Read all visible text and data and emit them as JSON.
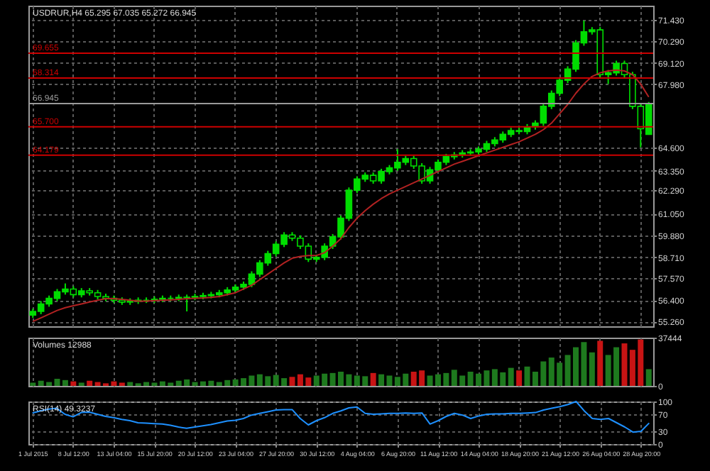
{
  "chart_data": [
    {
      "type": "candlestick",
      "title": "USDRUR,H4 65.295 67.035 65.272 66.945",
      "color": "#00dd00",
      "categories": [
        null,
        null,
        null,
        null,
        null,
        null,
        null,
        null,
        null,
        null,
        null,
        null,
        null,
        null,
        null,
        null,
        null,
        null,
        null,
        null,
        null,
        null,
        null,
        null,
        null,
        null,
        null,
        null,
        null,
        null,
        null,
        null,
        null,
        null,
        null,
        null,
        null,
        null,
        null,
        null,
        null,
        null,
        null,
        null,
        null,
        null,
        null,
        null,
        null,
        null,
        null,
        null,
        null,
        null,
        null,
        null,
        null,
        null,
        null,
        null,
        null,
        null,
        null,
        null,
        null,
        null,
        null,
        null,
        null,
        null,
        null,
        null,
        null,
        null,
        null,
        null,
        null
      ],
      "ohlc": [
        [
          55.6,
          55.95,
          55.45,
          55.8
        ],
        [
          55.8,
          56.35,
          55.65,
          56.2
        ],
        [
          56.2,
          56.65,
          56.05,
          56.5
        ],
        [
          56.5,
          57.0,
          56.35,
          56.85
        ],
        [
          56.85,
          57.3,
          56.7,
          57.0
        ],
        [
          57.0,
          57.15,
          56.55,
          56.7
        ],
        [
          56.7,
          57.05,
          56.55,
          56.9
        ],
        [
          56.9,
          57.05,
          56.65,
          56.8
        ],
        [
          56.8,
          56.95,
          56.45,
          56.6
        ],
        [
          56.6,
          56.75,
          56.35,
          56.5
        ],
        [
          56.5,
          56.65,
          56.25,
          56.4
        ],
        [
          56.4,
          56.55,
          56.15,
          56.3
        ],
        [
          56.3,
          56.5,
          56.15,
          56.35
        ],
        [
          56.35,
          56.55,
          56.2,
          56.4
        ],
        [
          56.4,
          56.55,
          56.25,
          56.4
        ],
        [
          56.4,
          56.6,
          56.25,
          56.45
        ],
        [
          56.45,
          56.65,
          56.3,
          56.5
        ],
        [
          56.5,
          56.65,
          56.35,
          56.5
        ],
        [
          56.5,
          56.7,
          56.35,
          56.55
        ],
        [
          56.55,
          56.7,
          55.8,
          56.56
        ],
        [
          56.56,
          56.75,
          56.4,
          56.6
        ],
        [
          56.6,
          56.8,
          56.45,
          56.65
        ],
        [
          56.65,
          56.85,
          56.5,
          56.7
        ],
        [
          56.7,
          56.95,
          56.55,
          56.8
        ],
        [
          56.8,
          57.1,
          56.65,
          56.95
        ],
        [
          56.95,
          57.25,
          56.8,
          57.1
        ],
        [
          57.1,
          57.4,
          56.95,
          57.25
        ],
        [
          57.25,
          57.95,
          57.1,
          57.8
        ],
        [
          57.8,
          58.55,
          57.65,
          58.4
        ],
        [
          58.4,
          59.05,
          58.25,
          58.9
        ],
        [
          58.9,
          59.55,
          58.75,
          59.4
        ],
        [
          59.4,
          60.05,
          59.25,
          59.9
        ],
        [
          59.9,
          60.05,
          59.58,
          59.73
        ],
        [
          59.73,
          59.88,
          59.15,
          59.3
        ],
        [
          59.3,
          59.45,
          58.45,
          58.6
        ],
        [
          58.6,
          58.85,
          58.45,
          58.7
        ],
        [
          58.7,
          59.45,
          58.55,
          59.3
        ],
        [
          59.3,
          59.95,
          59.15,
          59.8
        ],
        [
          59.8,
          60.95,
          59.65,
          60.8
        ],
        [
          60.8,
          62.45,
          60.65,
          62.3
        ],
        [
          62.3,
          63.05,
          62.15,
          62.9
        ],
        [
          62.9,
          63.25,
          62.75,
          63.1
        ],
        [
          63.1,
          63.25,
          62.65,
          62.8
        ],
        [
          62.8,
          63.45,
          62.65,
          63.3
        ],
        [
          63.3,
          63.65,
          63.15,
          63.5
        ],
        [
          63.5,
          64.5,
          63.35,
          63.8
        ],
        [
          63.8,
          64.15,
          63.65,
          64.0
        ],
        [
          64.0,
          64.15,
          63.45,
          63.6
        ],
        [
          63.6,
          63.75,
          62.65,
          62.8
        ],
        [
          62.8,
          63.55,
          62.65,
          63.4
        ],
        [
          63.4,
          63.95,
          63.25,
          63.8
        ],
        [
          63.8,
          64.25,
          63.65,
          64.1
        ],
        [
          64.1,
          64.35,
          63.95,
          64.2
        ],
        [
          64.2,
          64.45,
          64.05,
          64.3
        ],
        [
          64.3,
          64.5,
          64.15,
          64.35
        ],
        [
          64.35,
          64.65,
          64.2,
          64.5
        ],
        [
          64.5,
          64.95,
          64.35,
          64.8
        ],
        [
          64.8,
          65.15,
          64.65,
          65.0
        ],
        [
          65.0,
          65.45,
          64.85,
          65.3
        ],
        [
          65.3,
          65.65,
          65.15,
          65.5
        ],
        [
          65.5,
          65.65,
          65.3,
          65.45
        ],
        [
          65.45,
          65.85,
          65.3,
          65.7
        ],
        [
          65.7,
          66.05,
          65.55,
          65.9
        ],
        [
          65.9,
          66.95,
          65.75,
          66.8
        ],
        [
          66.8,
          67.65,
          66.65,
          67.5
        ],
        [
          67.5,
          68.35,
          67.35,
          68.2
        ],
        [
          68.2,
          68.95,
          68.05,
          68.8
        ],
        [
          68.8,
          70.35,
          68.65,
          70.2
        ],
        [
          70.2,
          71.4,
          70.05,
          70.8
        ],
        [
          70.8,
          71.05,
          70.65,
          70.9
        ],
        [
          70.9,
          71.05,
          68.35,
          68.5
        ],
        [
          68.5,
          68.75,
          68.0,
          68.6
        ],
        [
          68.6,
          69.25,
          68.45,
          69.1
        ],
        [
          69.1,
          69.25,
          68.35,
          68.5
        ],
        [
          68.5,
          68.65,
          66.65,
          66.8
        ],
        [
          66.8,
          66.95,
          64.6,
          65.6
        ],
        [
          65.295,
          67.035,
          65.272,
          66.945
        ]
      ],
      "series": [
        {
          "type": "line",
          "color": "#b22222",
          "values": [
            55.26,
            55.45,
            55.65,
            55.85,
            56.0,
            56.1,
            56.2,
            56.3,
            56.4,
            56.48,
            56.48,
            56.45,
            56.4,
            56.35,
            56.35,
            56.38,
            56.4,
            56.42,
            56.45,
            56.48,
            56.5,
            56.52,
            56.55,
            56.6,
            56.7,
            56.8,
            57.0,
            57.2,
            57.5,
            57.8,
            58.1,
            58.4,
            58.65,
            58.75,
            58.8,
            58.8,
            58.95,
            59.3,
            59.7,
            60.3,
            60.8,
            61.2,
            61.55,
            61.85,
            62.1,
            62.3,
            62.5,
            62.7,
            62.9,
            63.1,
            63.3,
            63.5,
            63.7,
            63.85,
            64.0,
            64.15,
            64.3,
            64.45,
            64.6,
            64.75,
            64.9,
            65.1,
            65.3,
            65.55,
            65.9,
            66.4,
            66.9,
            67.5,
            68.0,
            68.4,
            68.6,
            68.7,
            68.75,
            68.7,
            68.5,
            68.0,
            67.3
          ]
        }
      ],
      "ylim": [
        55.0,
        72.2
      ],
      "yticks": [
        {
          "value": 55.26,
          "label": "55.260"
        },
        {
          "value": 56.4,
          "label": "56.400"
        },
        {
          "value": 57.57,
          "label": "57.570"
        },
        {
          "value": 58.71,
          "label": "58.710"
        },
        {
          "value": 59.88,
          "label": "59.880"
        },
        {
          "value": 61.05,
          "label": "61.050"
        },
        {
          "value": 62.29,
          "label": "62.290"
        },
        {
          "value": 63.35,
          "label": "63.350"
        },
        {
          "value": 64.6,
          "label": "64.600"
        },
        {
          "value": 67.98,
          "label": "67.980"
        },
        {
          "value": 69.12,
          "label": "69.120"
        },
        {
          "value": 70.29,
          "label": "70.290"
        },
        {
          "value": 71.43,
          "label": "71.430"
        }
      ],
      "ref_lines": [
        {
          "axis": "y",
          "value": 69.655,
          "label": "69.655",
          "color": "#cc0000"
        },
        {
          "axis": "y",
          "value": 68.314,
          "label": "68.314",
          "color": "#cc0000"
        },
        {
          "axis": "y",
          "value": 66.945,
          "label": "66.945",
          "color": "#9a9a9a"
        },
        {
          "axis": "y",
          "value": 65.7,
          "label": "65.700",
          "color": "#cc0000"
        },
        {
          "axis": "y",
          "value": 64.179,
          "label": "64.179",
          "color": "#cc0000"
        }
      ],
      "grid": true,
      "tick_labels": "y"
    },
    {
      "type": "bar",
      "title": "Volumes 12988",
      "categories": [
        null,
        null,
        null,
        null,
        null,
        null,
        null,
        null,
        null,
        null,
        null,
        null,
        null,
        null,
        null,
        null,
        null,
        null,
        null,
        null,
        null,
        null,
        null,
        null,
        null,
        null,
        null,
        null,
        null,
        null,
        null,
        null,
        null,
        null,
        null,
        null,
        null,
        null,
        null,
        null,
        null,
        null,
        null,
        null,
        null,
        null,
        null,
        null,
        null,
        null,
        null,
        null,
        null,
        null,
        null,
        null,
        null,
        null,
        null,
        null,
        null,
        null,
        null,
        null,
        null,
        null,
        null,
        null,
        null,
        null,
        null,
        null,
        null,
        null,
        null,
        null,
        null
      ],
      "values": [
        2500,
        4000,
        3000,
        5500,
        4500,
        3500,
        2500,
        4000,
        3000,
        2000,
        3500,
        2500,
        3000,
        2000,
        3000,
        2500,
        3500,
        2500,
        4000,
        5000,
        3000,
        3500,
        4000,
        3000,
        4500,
        5000,
        6000,
        8000,
        9000,
        7500,
        8500,
        6000,
        7000,
        9000,
        6500,
        8000,
        9500,
        10000,
        11000,
        9000,
        8000,
        7500,
        10000,
        9000,
        8000,
        7000,
        9500,
        11000,
        12000,
        8000,
        9000,
        10000,
        12500,
        8000,
        11000,
        9500,
        12000,
        13000,
        10500,
        14000,
        12000,
        15000,
        11000,
        19000,
        22000,
        18000,
        24000,
        30000,
        34000,
        26000,
        35000,
        24000,
        30000,
        33000,
        28000,
        36000,
        12988
      ],
      "colors": [
        "#1e7a1e",
        "#1e7a1e",
        "#1e7a1e",
        "#1e7a1e",
        "#1e7a1e",
        "#c81414",
        "#1e7a1e",
        "#c81414",
        "#c81414",
        "#c81414",
        "#c81414",
        "#c81414",
        "#1e7a1e",
        "#1e7a1e",
        "#1e7a1e",
        "#1e7a1e",
        "#1e7a1e",
        "#1e7a1e",
        "#1e7a1e",
        "#1e7a1e",
        "#1e7a1e",
        "#1e7a1e",
        "#1e7a1e",
        "#1e7a1e",
        "#1e7a1e",
        "#1e7a1e",
        "#1e7a1e",
        "#1e7a1e",
        "#1e7a1e",
        "#1e7a1e",
        "#1e7a1e",
        "#1e7a1e",
        "#c81414",
        "#c81414",
        "#c81414",
        "#1e7a1e",
        "#1e7a1e",
        "#1e7a1e",
        "#1e7a1e",
        "#1e7a1e",
        "#1e7a1e",
        "#1e7a1e",
        "#c81414",
        "#1e7a1e",
        "#1e7a1e",
        "#1e7a1e",
        "#1e7a1e",
        "#c81414",
        "#c81414",
        "#1e7a1e",
        "#1e7a1e",
        "#1e7a1e",
        "#1e7a1e",
        "#1e7a1e",
        "#1e7a1e",
        "#1e7a1e",
        "#1e7a1e",
        "#1e7a1e",
        "#1e7a1e",
        "#1e7a1e",
        "#c81414",
        "#1e7a1e",
        "#1e7a1e",
        "#1e7a1e",
        "#1e7a1e",
        "#1e7a1e",
        "#1e7a1e",
        "#1e7a1e",
        "#1e7a1e",
        "#1e7a1e",
        "#c81414",
        "#1e7a1e",
        "#1e7a1e",
        "#c81414",
        "#c81414",
        "#c81414",
        "#1e7a1e"
      ],
      "ylim": [
        0,
        37444
      ],
      "yticks": [
        0,
        37444
      ],
      "grid": "x",
      "tick_labels": "y"
    },
    {
      "type": "line",
      "title": "RSI(14) 49.3237",
      "color": "#1e90ff",
      "categories": [
        "1 Jul 2015",
        null,
        null,
        null,
        null,
        "8 Jul 12:00",
        null,
        null,
        null,
        null,
        "13 Jul 04:00",
        null,
        null,
        null,
        null,
        "15 Jul 20:00",
        null,
        null,
        null,
        null,
        "20 Jul 12:00",
        null,
        null,
        null,
        null,
        "23 Jul 04:00",
        null,
        null,
        null,
        null,
        "27 Jul 20:00",
        null,
        null,
        null,
        null,
        "30 Jul 12:00",
        null,
        null,
        null,
        null,
        "4 Aug 04:00",
        null,
        null,
        null,
        null,
        "6 Aug 20:00",
        null,
        null,
        null,
        null,
        "11 Aug 12:00",
        null,
        null,
        null,
        null,
        "14 Aug 04:00",
        null,
        null,
        null,
        null,
        "18 Aug 20:00",
        null,
        null,
        null,
        null,
        "21 Aug 12:00",
        null,
        null,
        null,
        null,
        "26 Aug 04:00",
        null,
        null,
        null,
        null,
        "28 Aug 20:00",
        null
      ],
      "values": [
        73,
        78,
        82,
        84,
        70,
        64,
        74,
        75,
        70,
        65,
        62,
        58,
        55,
        50,
        49,
        48,
        47,
        44,
        40,
        37,
        40,
        43,
        46,
        50,
        54,
        56,
        60,
        68,
        72,
        76,
        80,
        81,
        81,
        60,
        45,
        55,
        62,
        72,
        78,
        85,
        87,
        72,
        70,
        71,
        72,
        72,
        73,
        72,
        73,
        47,
        55,
        65,
        72,
        68,
        60,
        66,
        70,
        71,
        71,
        72,
        72,
        73,
        74,
        80,
        84,
        88,
        93,
        100,
        78,
        60,
        58,
        60,
        50,
        40,
        28,
        30,
        49.3237
      ],
      "ylim": [
        0,
        100
      ],
      "yticks": [
        0,
        30,
        70,
        100
      ],
      "grid": true
    }
  ]
}
